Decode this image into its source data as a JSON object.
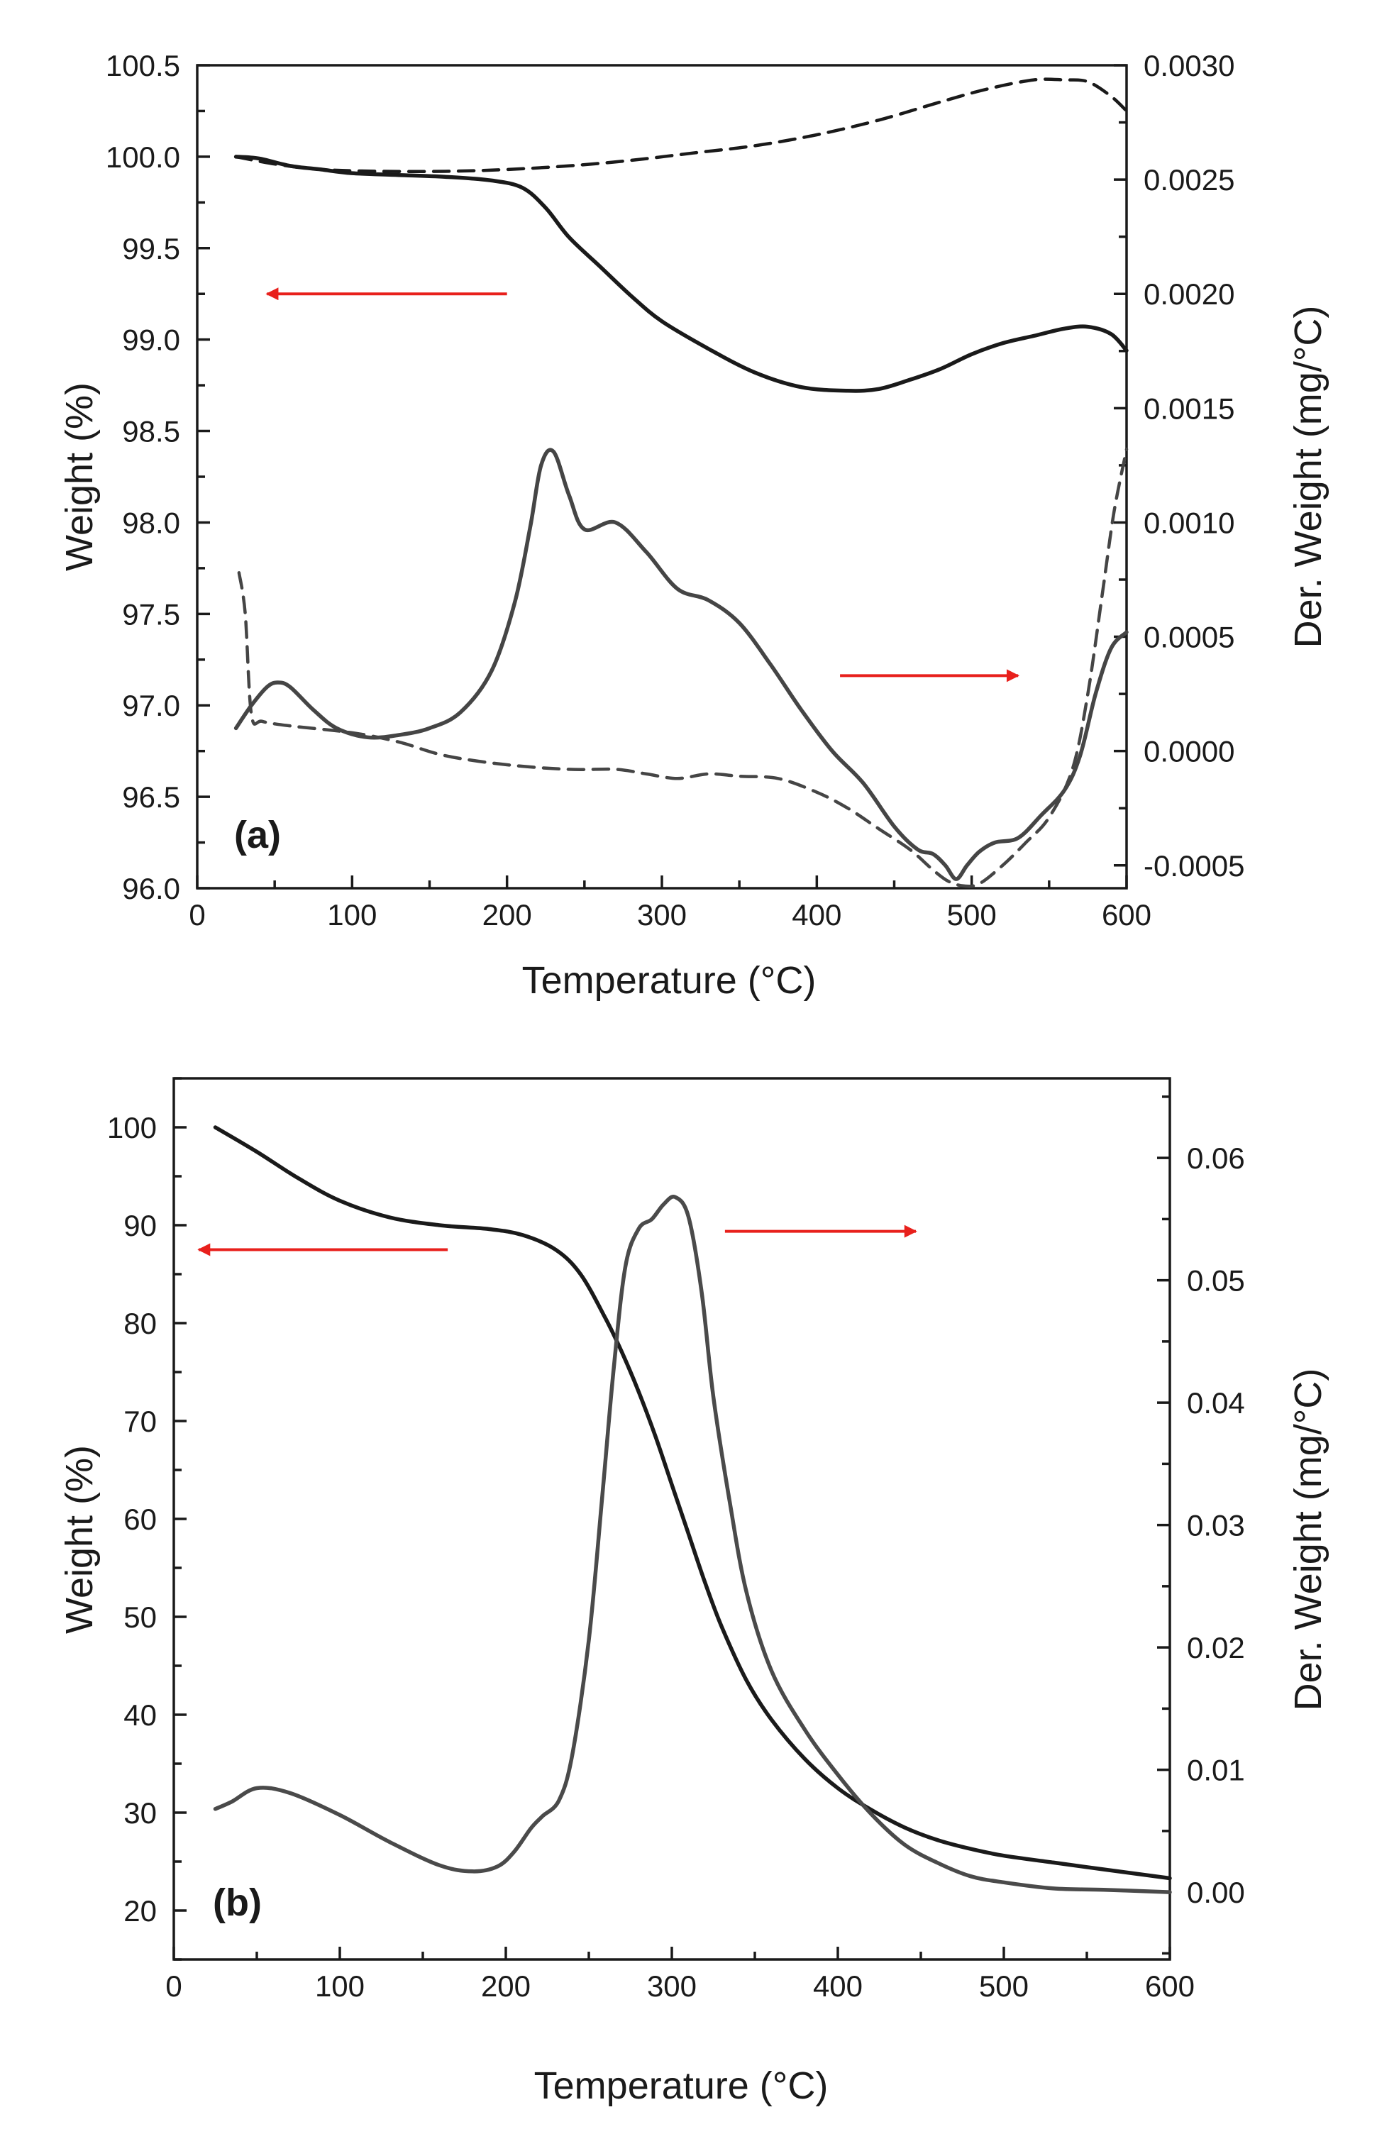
{
  "chart_data": [
    {
      "panel": "(a)",
      "type": "line",
      "title": "",
      "xlabel": "Temperature (°C)",
      "ylabel_left": "Weight (%)",
      "ylabel_right": "Der. Weight (mg/°C)",
      "xlim": [
        0,
        600
      ],
      "ylim_left": [
        96.0,
        100.5
      ],
      "ylim_right": [
        -0.0006,
        0.003
      ],
      "x_ticks": [
        "0",
        "100",
        "200",
        "300",
        "400",
        "500",
        "600"
      ],
      "y_left_ticks": [
        "96.0",
        "96.5",
        "97.0",
        "97.5",
        "98.0",
        "98.5",
        "99.0",
        "99.5",
        "100.0",
        "100.5"
      ],
      "y_right_ticks": [
        "-0.0005",
        "0.0000",
        "0.0005",
        "0.0010",
        "0.0015",
        "0.0020",
        "0.0025",
        "0.0030"
      ],
      "arrows": [
        {
          "direction": "left",
          "axis": "left",
          "x_from": 200,
          "x_to": 45,
          "y": 99.25,
          "color": "#e8201c"
        },
        {
          "direction": "right",
          "axis": "right",
          "x_from": 415,
          "x_to": 530,
          "y": 0.00033,
          "color": "#e8201c"
        }
      ],
      "series": [
        {
          "name": "Weight (solid)",
          "axis": "left",
          "style": "solid",
          "color": "#1a1a1a",
          "width": 5.5,
          "x": [
            25,
            40,
            60,
            80,
            100,
            130,
            160,
            190,
            210,
            225,
            240,
            260,
            280,
            300,
            330,
            360,
            390,
            420,
            440,
            460,
            480,
            500,
            520,
            540,
            560,
            575,
            590,
            600
          ],
          "y": [
            100.0,
            99.99,
            99.95,
            99.93,
            99.91,
            99.9,
            99.89,
            99.87,
            99.83,
            99.72,
            99.56,
            99.4,
            99.24,
            99.1,
            98.95,
            98.82,
            98.74,
            98.72,
            98.73,
            98.78,
            98.84,
            98.92,
            98.98,
            99.02,
            99.06,
            99.07,
            99.03,
            98.94
          ]
        },
        {
          "name": "Weight (dashed)",
          "axis": "left",
          "style": "dashed",
          "color": "#1a1a1a",
          "width": 4.5,
          "x": [
            25,
            50,
            80,
            120,
            160,
            200,
            240,
            280,
            320,
            360,
            400,
            440,
            480,
            510,
            540,
            560,
            575,
            590,
            600
          ],
          "y": [
            100.0,
            99.96,
            99.93,
            99.92,
            99.92,
            99.93,
            99.95,
            99.98,
            100.02,
            100.06,
            100.12,
            100.2,
            100.3,
            100.37,
            100.42,
            100.42,
            100.41,
            100.33,
            100.25
          ]
        },
        {
          "name": "Derivative weight (solid)",
          "axis": "right",
          "style": "solid",
          "color": "#454545",
          "width": 5.5,
          "x": [
            25,
            35,
            45,
            52,
            60,
            75,
            90,
            110,
            130,
            150,
            170,
            190,
            205,
            215,
            222,
            230,
            240,
            250,
            270,
            290,
            310,
            330,
            350,
            370,
            390,
            410,
            430,
            450,
            465,
            475,
            483,
            490,
            497,
            505,
            515,
            530,
            545,
            560,
            570,
            580,
            590,
            600
          ],
          "y": [
            0.0001,
            0.0002,
            0.00028,
            0.0003,
            0.00028,
            0.00018,
            0.0001,
            6e-05,
            7e-05,
            0.0001,
            0.00017,
            0.00035,
            0.00065,
            0.00098,
            0.00125,
            0.00131,
            0.00112,
            0.00097,
            0.001,
            0.00087,
            0.00071,
            0.00066,
            0.00056,
            0.00038,
            0.00018,
            0.0,
            -0.00014,
            -0.00033,
            -0.00043,
            -0.00045,
            -0.0005,
            -0.00056,
            -0.0005,
            -0.00044,
            -0.0004,
            -0.00038,
            -0.00028,
            -0.00017,
            -2e-05,
            0.00025,
            0.00045,
            0.00052
          ]
        },
        {
          "name": "Derivative weight (dashed)",
          "axis": "right",
          "style": "dashed",
          "color": "#454545",
          "width": 4.5,
          "x": [
            27,
            31,
            35,
            42,
            60,
            100,
            130,
            160,
            200,
            240,
            270,
            290,
            310,
            330,
            350,
            375,
            400,
            420,
            440,
            460,
            475,
            485,
            495,
            505,
            520,
            535,
            550,
            565,
            575,
            585,
            592,
            600
          ],
          "y": [
            0.00078,
            0.0006,
            0.00016,
            0.00013,
            0.00011,
            8e-05,
            4e-05,
            -2e-05,
            -6e-05,
            -8e-05,
            -8e-05,
            -0.0001,
            -0.00012,
            -0.0001,
            -0.00011,
            -0.00012,
            -0.00018,
            -0.00025,
            -0.00034,
            -0.00043,
            -0.00052,
            -0.00057,
            -0.00059,
            -0.00058,
            -0.0005,
            -0.0004,
            -0.00029,
            -8e-05,
            0.00025,
            0.00072,
            0.00105,
            0.00132
          ]
        }
      ]
    },
    {
      "panel": "(b)",
      "type": "line",
      "title": "",
      "xlabel": "Temperature (°C)",
      "ylabel_left": "Weight (%)",
      "ylabel_right": "Der. Weight (mg/°C)",
      "xlim": [
        0,
        600
      ],
      "ylim_left": [
        15,
        105
      ],
      "ylim_right": [
        -0.0055,
        0.0665
      ],
      "x_ticks": [
        "0",
        "100",
        "200",
        "300",
        "400",
        "500",
        "600"
      ],
      "y_left_ticks": [
        "20",
        "30",
        "40",
        "50",
        "60",
        "70",
        "80",
        "90",
        "100"
      ],
      "y_right_ticks": [
        "0.00",
        "0.01",
        "0.02",
        "0.03",
        "0.04",
        "0.05",
        "0.06"
      ],
      "arrows": [
        {
          "direction": "left",
          "axis": "left",
          "x_from": 165,
          "x_to": 15,
          "y": 87.5,
          "color": "#e8201c"
        },
        {
          "direction": "right",
          "axis": "right",
          "x_from": 332,
          "x_to": 447,
          "y": 0.054,
          "color": "#e8201c"
        }
      ],
      "series": [
        {
          "name": "Weight",
          "axis": "left",
          "style": "solid",
          "color": "#1a1a1a",
          "width": 5.5,
          "x": [
            25,
            50,
            75,
            100,
            130,
            160,
            190,
            210,
            230,
            245,
            260,
            270,
            280,
            290,
            300,
            310,
            320,
            330,
            345,
            360,
            380,
            400,
            420,
            440,
            460,
            480,
            500,
            530,
            560,
            600
          ],
          "y": [
            100.0,
            97.5,
            94.8,
            92.5,
            90.8,
            90.0,
            89.6,
            89.0,
            87.5,
            85.0,
            80.5,
            77.0,
            73.0,
            68.5,
            63.5,
            58.5,
            53.5,
            49.0,
            43.5,
            39.5,
            35.5,
            32.5,
            30.3,
            28.5,
            27.2,
            26.3,
            25.6,
            24.9,
            24.2,
            23.3
          ]
        },
        {
          "name": "Derivative weight",
          "axis": "right",
          "style": "solid",
          "color": "#4a4a4a",
          "width": 5.5,
          "x": [
            25,
            35,
            50,
            70,
            100,
            130,
            160,
            180,
            195,
            205,
            215,
            222,
            232,
            240,
            250,
            258,
            265,
            272,
            280,
            288,
            295,
            302,
            310,
            318,
            325,
            335,
            345,
            360,
            380,
            400,
            420,
            440,
            460,
            480,
            500,
            530,
            560,
            600
          ],
          "y": [
            0.0068,
            0.0074,
            0.0085,
            0.0081,
            0.0063,
            0.0041,
            0.0022,
            0.0017,
            0.0021,
            0.0033,
            0.0052,
            0.0062,
            0.0075,
            0.0112,
            0.0206,
            0.0322,
            0.0428,
            0.0511,
            0.0542,
            0.055,
            0.0562,
            0.0568,
            0.0552,
            0.049,
            0.0405,
            0.0318,
            0.0245,
            0.0181,
            0.0133,
            0.0096,
            0.0064,
            0.0039,
            0.0024,
            0.0013,
            0.0008,
            0.0003,
            0.0002,
            0.0
          ]
        }
      ]
    }
  ]
}
